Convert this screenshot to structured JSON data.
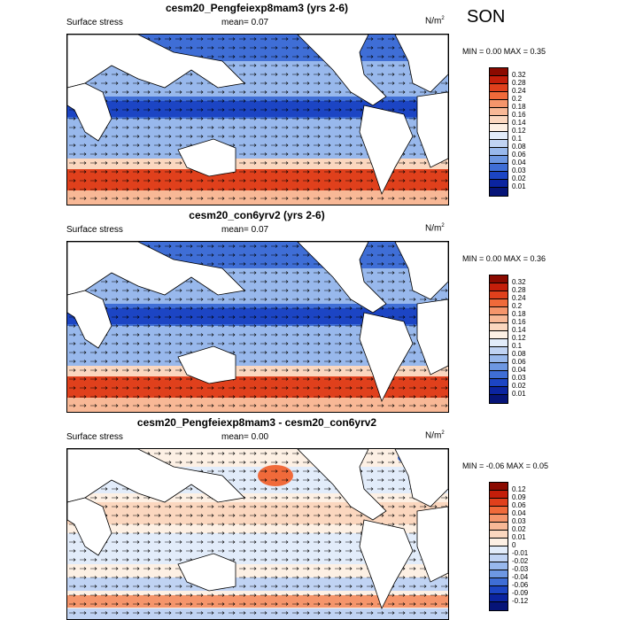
{
  "season": "SON",
  "units_base": "N/m",
  "units_exp": "2",
  "panels": [
    {
      "title": "cesm20_Pengfeiexp8mam3 (yrs 2-6)",
      "label": "Surface stress",
      "mean_label": "mean=",
      "mean_value": "0.07",
      "minmax": "MIN =   0.00 MAX =   0.35",
      "cbar_labels": [
        "0.32",
        "0.28",
        "0.24",
        "0.2",
        "0.18",
        "0.16",
        "0.14",
        "0.12",
        "0.1",
        "0.08",
        "0.06",
        "0.04",
        "0.03",
        "0.02",
        "0.01"
      ],
      "cbar_colors": [
        "#8b0a00",
        "#c41e0a",
        "#e0401c",
        "#f06a3a",
        "#f5956b",
        "#f8b896",
        "#fbd7bf",
        "#fdf0e4",
        "#e2ecfa",
        "#c0d3f3",
        "#98b8ec",
        "#6d97e2",
        "#3f6ed6",
        "#1c45c4",
        "#0b24a0",
        "#061478"
      ]
    },
    {
      "title": "cesm20_con6yrv2 (yrs 2-6)",
      "label": "Surface stress",
      "mean_label": "mean=",
      "mean_value": "0.07",
      "minmax": "MIN =   0.00 MAX =   0.36",
      "cbar_labels": [
        "0.32",
        "0.28",
        "0.24",
        "0.2",
        "0.18",
        "0.16",
        "0.14",
        "0.12",
        "0.1",
        "0.08",
        "0.06",
        "0.04",
        "0.03",
        "0.02",
        "0.01"
      ],
      "cbar_colors": [
        "#8b0a00",
        "#c41e0a",
        "#e0401c",
        "#f06a3a",
        "#f5956b",
        "#f8b896",
        "#fbd7bf",
        "#fdf0e4",
        "#e2ecfa",
        "#c0d3f3",
        "#98b8ec",
        "#6d97e2",
        "#3f6ed6",
        "#1c45c4",
        "#0b24a0",
        "#061478"
      ]
    },
    {
      "title": "cesm20_Pengfeiexp8mam3 - cesm20_con6yrv2",
      "label": "Surface stress",
      "mean_label": "mean=",
      "mean_value": "0.00",
      "minmax": "MIN =  -0.06 MAX =   0.05",
      "cbar_labels": [
        "0.12",
        "0.09",
        "0.06",
        "0.04",
        "0.03",
        "0.02",
        "0.01",
        "0",
        "-0.01",
        "-0.02",
        "-0.03",
        "-0.04",
        "-0.06",
        "-0.09",
        "-0.12"
      ],
      "cbar_colors": [
        "#8b0a00",
        "#c41e0a",
        "#e0401c",
        "#f06a3a",
        "#f5956b",
        "#f8b896",
        "#fbd7bf",
        "#fdf0e4",
        "#e2ecfa",
        "#c0d3f3",
        "#98b8ec",
        "#6d97e2",
        "#3f6ed6",
        "#1c45c4",
        "#0b24a0",
        "#061478"
      ]
    }
  ]
}
